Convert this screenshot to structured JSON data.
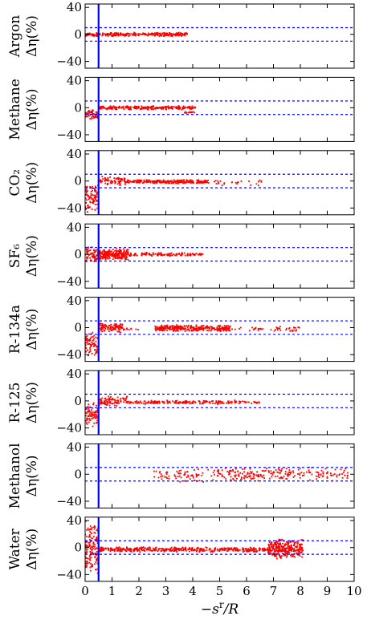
{
  "chart_data": {
    "type": "scatter",
    "xlabel": "−s^r/R",
    "xlim": [
      0,
      10
    ],
    "x_ticks": [
      "0",
      "1",
      "2",
      "3",
      "4",
      "5",
      "6",
      "7",
      "8",
      "9",
      "10"
    ],
    "y_ticks": [
      "40",
      "0",
      "−40"
    ],
    "ylim": [
      -50,
      45
    ],
    "grid": false,
    "reference_lines": {
      "vertical_x": 0.5,
      "vertical_color": "#0000ff",
      "horizontal_dashed_y": [
        10,
        -10
      ],
      "horizontal_color": "#0000ff"
    },
    "point_color": "#ff0000",
    "panels": [
      {
        "fluid": "Argon",
        "ylabel": "Δη(%)",
        "point_clusters": [
          {
            "x_range": [
              0.0,
              3.8
            ],
            "y_center": 0,
            "y_spread": 3,
            "count": 320
          }
        ]
      },
      {
        "fluid": "Methane",
        "ylabel": "Δη(%)",
        "point_clusters": [
          {
            "x_range": [
              0.0,
              0.5
            ],
            "y_center": -10,
            "y_spread": 8,
            "count": 60
          },
          {
            "x_range": [
              0.5,
              4.1
            ],
            "y_center": 0,
            "y_spread": 3,
            "count": 260
          },
          {
            "x_range": [
              3.7,
              4.1
            ],
            "y_center": -7,
            "y_spread": 1,
            "count": 15
          }
        ]
      },
      {
        "fluid": "CO₂",
        "ylabel": "Δη(%)",
        "point_clusters": [
          {
            "x_range": [
              0.0,
              0.5
            ],
            "y_center": -25,
            "y_spread": 22,
            "count": 90
          },
          {
            "x_range": [
              0.5,
              1.5
            ],
            "y_center": 0,
            "y_spread": 7,
            "count": 80
          },
          {
            "x_range": [
              1.5,
              4.6
            ],
            "y_center": -1,
            "y_spread": 3,
            "count": 260
          },
          {
            "x_range": [
              4.8,
              6.7
            ],
            "y_center": -3,
            "y_spread": 6,
            "count": 25
          }
        ]
      },
      {
        "fluid": "SF₆",
        "ylabel": "Δη(%)",
        "point_clusters": [
          {
            "x_range": [
              0.0,
              0.5
            ],
            "y_center": 0,
            "y_spread": 12,
            "count": 80
          },
          {
            "x_range": [
              0.5,
              1.6
            ],
            "y_center": 0,
            "y_spread": 9,
            "count": 220
          },
          {
            "x_range": [
              1.6,
              4.4
            ],
            "y_center": 0,
            "y_spread": 3,
            "count": 120
          }
        ]
      },
      {
        "fluid": "R-134a",
        "ylabel": "Δη(%)",
        "point_clusters": [
          {
            "x_range": [
              0.0,
              0.5
            ],
            "y_center": -25,
            "y_spread": 20,
            "count": 90
          },
          {
            "x_range": [
              0.5,
              1.4
            ],
            "y_center": 0,
            "y_spread": 8,
            "count": 100
          },
          {
            "x_range": [
              1.4,
              2.0
            ],
            "y_center": -2,
            "y_spread": 3,
            "count": 10
          },
          {
            "x_range": [
              2.6,
              5.4
            ],
            "y_center": -1,
            "y_spread": 5,
            "count": 300
          },
          {
            "x_range": [
              5.4,
              8.0
            ],
            "y_center": -2,
            "y_spread": 4,
            "count": 45
          }
        ]
      },
      {
        "fluid": "R-125",
        "ylabel": "Δη(%)",
        "point_clusters": [
          {
            "x_range": [
              0.0,
              0.5
            ],
            "y_center": -20,
            "y_spread": 18,
            "count": 80
          },
          {
            "x_range": [
              0.5,
              1.6
            ],
            "y_center": 0,
            "y_spread": 8,
            "count": 90
          },
          {
            "x_range": [
              1.6,
              6.5
            ],
            "y_center": -2,
            "y_spread": 3,
            "count": 200
          }
        ]
      },
      {
        "fluid": "Methanol",
        "ylabel": "Δη(%)",
        "point_clusters": [
          {
            "x_range": [
              2.5,
              4.8
            ],
            "y_center": -3,
            "y_spread": 12,
            "count": 70
          },
          {
            "x_range": [
              4.8,
              7.6
            ],
            "y_center": 0,
            "y_spread": 10,
            "count": 140
          },
          {
            "x_range": [
              7.6,
              9.8
            ],
            "y_center": 0,
            "y_spread": 12,
            "count": 70
          }
        ]
      },
      {
        "fluid": "Water",
        "ylabel": "Δη(%)",
        "point_clusters": [
          {
            "x_range": [
              0.0,
              0.5
            ],
            "y_center": 0,
            "y_spread": 40,
            "count": 160
          },
          {
            "x_range": [
              0.5,
              6.8
            ],
            "y_center": -3,
            "y_spread": 4,
            "count": 450
          },
          {
            "x_range": [
              6.8,
              8.1
            ],
            "y_center": -2,
            "y_spread": 16,
            "count": 300
          }
        ]
      }
    ]
  }
}
